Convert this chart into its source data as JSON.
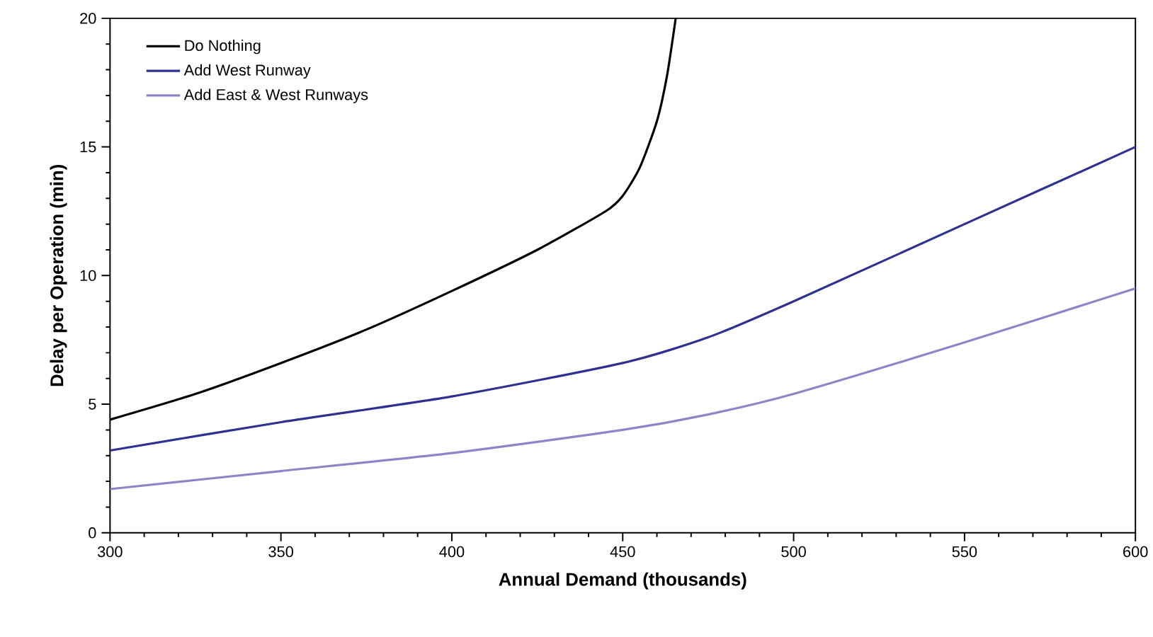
{
  "chart_data": {
    "type": "line",
    "xlabel": "Annual Demand (thousands)",
    "ylabel": "Delay per Operation (min)",
    "xlim": [
      300,
      600
    ],
    "xticks": [
      300,
      350,
      400,
      450,
      500,
      550,
      600
    ],
    "ylim": [
      0,
      20
    ],
    "yticks": [
      0,
      5,
      10,
      15,
      20
    ],
    "legend": "top left",
    "grid": false,
    "marker": "none",
    "line_style": "solid",
    "series": [
      {
        "name": "Do Nothing",
        "color": "#000000",
        "x": [
          300,
          325,
          350,
          375,
          400,
          425,
          445,
          450,
          455,
          460,
          463,
          465.5
        ],
        "values": [
          4.4,
          5.4,
          6.6,
          7.9,
          9.4,
          11.0,
          12.5,
          13.1,
          14.2,
          16.0,
          17.8,
          20
        ]
      },
      {
        "name": "Add West Runway",
        "color": "#2e3192",
        "x": [
          300,
          350,
          400,
          450,
          475,
          500,
          550,
          600
        ],
        "values": [
          3.2,
          4.3,
          5.3,
          6.6,
          7.6,
          9.0,
          12.0,
          15.0
        ]
      },
      {
        "name": "Add East & West Runways",
        "color": "#8b86c8",
        "x": [
          300,
          350,
          400,
          450,
          475,
          500,
          550,
          600
        ],
        "values": [
          1.7,
          2.4,
          3.1,
          4.0,
          4.6,
          5.4,
          7.4,
          9.5
        ]
      }
    ]
  }
}
